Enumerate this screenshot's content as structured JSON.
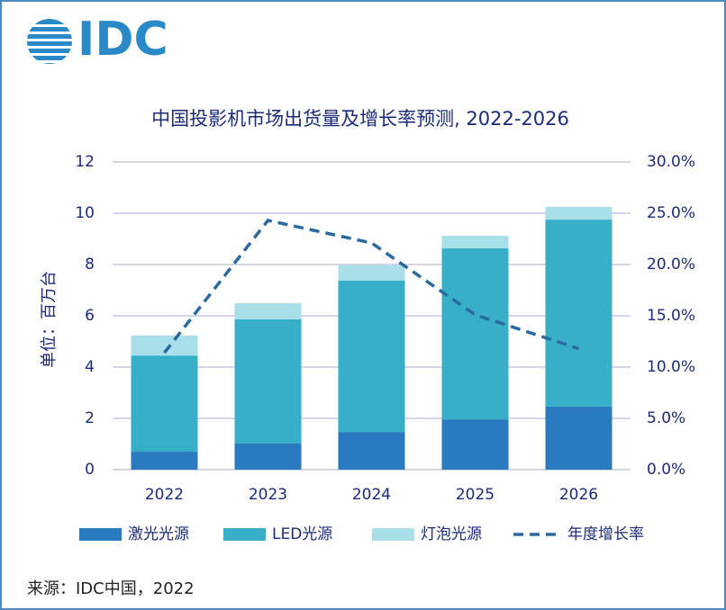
{
  "logo": "IDC",
  "source": "来源：IDC中国，2022",
  "chart_data": {
    "type": "bar",
    "stacked": true,
    "title": "中国投影机市场出货量及增长率预测, 2022-2026",
    "ylabel": "单位：百万台",
    "categories": [
      "2022",
      "2023",
      "2024",
      "2025",
      "2026"
    ],
    "series": [
      {
        "name": "激光光源",
        "color": "#2a7abf",
        "values": [
          0.7,
          1.02,
          1.47,
          1.96,
          2.46
        ]
      },
      {
        "name": "LED光源",
        "color": "#38afc9",
        "values": [
          3.75,
          4.84,
          5.9,
          6.67,
          7.29
        ]
      },
      {
        "name": "灯泡光源",
        "color": "#a8dfe8",
        "values": [
          0.78,
          0.63,
          0.6,
          0.49,
          0.5
        ]
      },
      {
        "name": "年度增长率",
        "color": "#2a6aa0",
        "type": "line",
        "dashed": true,
        "axis": "y2",
        "values": [
          11.4,
          24.3,
          22.1,
          15.1,
          11.8
        ]
      }
    ],
    "ylim": [
      0,
      12
    ],
    "yticks": [
      0,
      2,
      4,
      6,
      8,
      10,
      12
    ],
    "y2lim": [
      0,
      30
    ],
    "y2ticks": [
      {
        "value": 0,
        "label": "0.0%"
      },
      {
        "value": 5,
        "label": "5.0%"
      },
      {
        "value": 10,
        "label": "10.0%"
      },
      {
        "value": 15,
        "label": "15.0%"
      },
      {
        "value": 20,
        "label": "20.0%"
      },
      {
        "value": 25,
        "label": "25.0%"
      },
      {
        "value": 30,
        "label": "30.0%"
      }
    ],
    "grid": true,
    "legend": "bottom"
  }
}
